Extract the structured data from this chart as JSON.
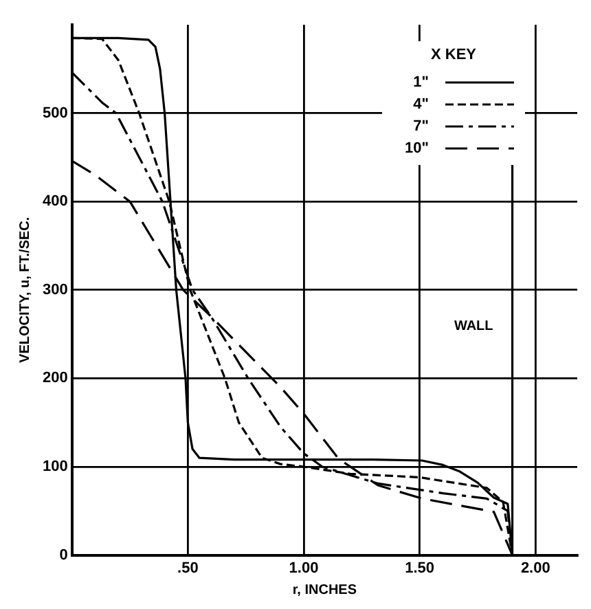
{
  "chart_data": {
    "type": "line",
    "xlabel": "r, INCHES",
    "ylabel": "VELOCITY, u, FT./SEC.",
    "legend_title": "X KEY",
    "legend": "top right",
    "grid": true,
    "marker": "none",
    "xlim": [
      0,
      2.18
    ],
    "xticks": [
      {
        "value": 0.5,
        "label": ".50"
      },
      {
        "value": 1,
        "label": "1.00"
      },
      {
        "value": 1.5,
        "label": "1.50"
      },
      {
        "value": 2,
        "label": "2.00"
      }
    ],
    "ylim": [
      0,
      600
    ],
    "yticks": [
      0,
      100,
      200,
      300,
      400,
      500
    ],
    "ref_lines": [
      {
        "axis": "x",
        "value": 1.9,
        "label": "WALL"
      }
    ],
    "series": [
      {
        "name": "1\"",
        "color": "#000000",
        "line_style": "solid",
        "x": [
          0,
          0.2,
          0.33,
          0.36,
          0.38,
          0.4,
          0.45,
          0.49,
          0.5,
          0.52,
          0.55,
          0.7,
          1.0,
          1.3,
          1.51,
          1.6,
          1.67,
          1.75,
          1.82,
          1.88,
          1.9
        ],
        "values": [
          585,
          585,
          583,
          575,
          550,
          500,
          300,
          200,
          150,
          120,
          110,
          108,
          108,
          108,
          107,
          102,
          95,
          82,
          65,
          58,
          0
        ]
      },
      {
        "name": "4\"",
        "color": "#000000",
        "line_style": "dashed",
        "x": [
          0,
          0.13,
          0.2,
          0.29,
          0.42,
          0.51,
          0.66,
          0.72,
          0.82,
          0.9,
          1.0,
          1.2,
          1.5,
          1.79,
          1.86,
          1.9
        ],
        "values": [
          585,
          584,
          560,
          500,
          400,
          300,
          200,
          150,
          110,
          103,
          100,
          92,
          88,
          76,
          60,
          0
        ]
      },
      {
        "name": "7\"",
        "color": "#000000",
        "line_style": "dashed",
        "x": [
          0,
          0.13,
          0.19,
          0.39,
          0.52,
          0.6,
          0.76,
          0.9,
          1.0,
          1.08,
          1.32,
          1.6,
          1.79,
          1.88,
          1.9
        ],
        "values": [
          546,
          512,
          500,
          400,
          300,
          270,
          200,
          145,
          115,
          100,
          81,
          70,
          64,
          50,
          0
        ]
      },
      {
        "name": "10\"",
        "color": "#000000",
        "line_style": "dashed",
        "x": [
          0,
          0.1,
          0.25,
          0.48,
          0.6,
          0.75,
          0.9,
          1.0,
          1.15,
          1.32,
          1.51,
          1.82,
          1.9
        ],
        "values": [
          446,
          430,
          400,
          300,
          270,
          230,
          190,
          160,
          109,
          79,
          64,
          49,
          0
        ]
      }
    ]
  }
}
